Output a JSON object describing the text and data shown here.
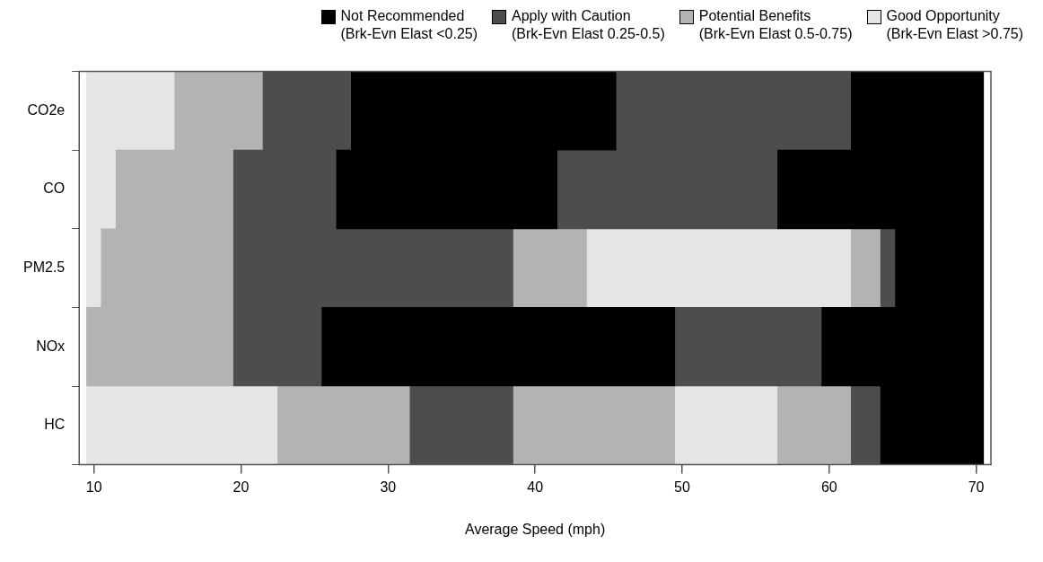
{
  "chart_data": {
    "type": "bar",
    "orientation": "horizontal",
    "xlabel": "Average Speed (mph)",
    "legend": "top",
    "categories": [
      "CO2e",
      "CO",
      "PM2.5",
      "NOx",
      "HC"
    ],
    "xlim": [
      9,
      71
    ],
    "xticks": [
      10,
      20,
      30,
      40,
      50,
      60,
      70
    ],
    "series": [
      {
        "name": "Not Recommended\n(Brk-Evn Elast <0.25)",
        "color": "#000000",
        "base": [
          27.5,
          26.5,
          64.5,
          25.5,
          63.5
        ],
        "values": [
          18,
          15,
          6,
          24,
          7
        ]
      },
      {
        "color": "#000000",
        "base": [
          61.5,
          56.5,
          null,
          59.5,
          null
        ],
        "values": [
          9,
          14,
          null,
          11,
          null
        ]
      },
      {
        "name": "Apply with Caution\n(Brk-Evn Elast 0.25-0.5)",
        "color": "#4d4d4d",
        "base": [
          21.5,
          19.5,
          19.5,
          19.5,
          31.5
        ],
        "values": [
          6,
          7,
          19,
          6,
          7
        ]
      },
      {
        "color": "#4d4d4d",
        "base": [
          45.5,
          41.5,
          63.5,
          49.5,
          61.5
        ],
        "values": [
          16,
          15,
          1,
          10,
          2
        ]
      },
      {
        "name": "Potential Benefits\n(Brk-Evn Elast 0.5-0.75)",
        "color": "#b3b3b3",
        "base": [
          15.5,
          11.5,
          10.5,
          9.5,
          22.5
        ],
        "values": [
          6,
          8,
          9,
          10,
          9
        ]
      },
      {
        "color": "#b3b3b3",
        "base": [
          null,
          null,
          38.5,
          null,
          38.5
        ],
        "values": [
          null,
          null,
          5,
          null,
          11
        ]
      },
      {
        "color": "#b3b3b3",
        "base": [
          null,
          null,
          61.5,
          null,
          56.5
        ],
        "values": [
          null,
          null,
          2,
          null,
          5
        ]
      },
      {
        "name": "Good Opportunity\n(Brk-Evn Elast >0.75)",
        "color": "#e5e5e5",
        "base": [
          9.5,
          9.5,
          9.5,
          null,
          9.5
        ],
        "values": [
          6,
          2,
          1,
          null,
          13
        ]
      },
      {
        "color": "#e5e5e5",
        "base": [
          null,
          null,
          43.5,
          null,
          49.5
        ],
        "values": [
          null,
          null,
          18,
          null,
          7
        ]
      }
    ]
  }
}
